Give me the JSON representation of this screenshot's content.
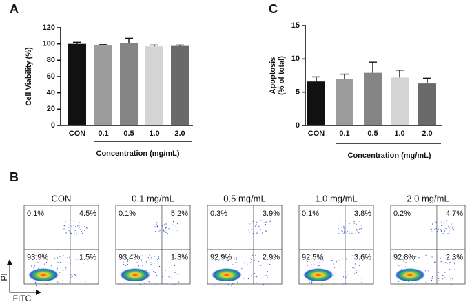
{
  "panel_labels": [
    "A",
    "B",
    "C"
  ],
  "chart_data": [
    {
      "type": "bar",
      "ylabel": "Cell Viability (%)",
      "xlabel": "Concentration (mg/mL)",
      "categories": [
        "CON",
        "0.1",
        "0.5",
        "1.0",
        "2.0"
      ],
      "values": [
        100,
        98,
        101,
        97,
        97.5
      ],
      "errors": [
        2,
        1,
        6,
        1.5,
        1
      ],
      "colors": [
        "#111111",
        "#9c9c9c",
        "#858585",
        "#d4d4d4",
        "#6a6a6a"
      ],
      "ylim": [
        0,
        120
      ],
      "yticks": [
        0,
        20,
        40,
        60,
        80,
        100,
        120
      ]
    },
    {
      "type": "bar",
      "ylabel_lines": [
        "Apoptosis",
        "(% of total)"
      ],
      "xlabel": "Concentration (mg/mL)",
      "categories": [
        "CON",
        "0.1",
        "0.5",
        "1.0",
        "2.0"
      ],
      "values": [
        6.6,
        7.0,
        7.9,
        7.2,
        6.3
      ],
      "errors": [
        0.7,
        0.7,
        1.6,
        1.1,
        0.8
      ],
      "colors": [
        "#111111",
        "#9c9c9c",
        "#858585",
        "#d4d4d4",
        "#6a6a6a"
      ],
      "ylim": [
        0,
        15
      ],
      "yticks": [
        0,
        5,
        10,
        15
      ]
    }
  ],
  "flow_cytometry": {
    "y_axis": "PI",
    "x_axis": "FITC",
    "panels": [
      {
        "title": "CON",
        "upper_left": "0.1%",
        "upper_right": "4.5%",
        "lower_left": "93.9%",
        "lower_right": "1.5%"
      },
      {
        "title": "0.1 mg/mL",
        "upper_left": "0.1%",
        "upper_right": "5.2%",
        "lower_left": "93.4%",
        "lower_right": "1.3%"
      },
      {
        "title": "0.5 mg/mL",
        "upper_left": "0.3%",
        "upper_right": "3.9%",
        "lower_left": "92.9%",
        "lower_right": "2.9%"
      },
      {
        "title": "1.0 mg/mL",
        "upper_left": "0.1%",
        "upper_right": "3.8%",
        "lower_left": "92.5%",
        "lower_right": "3.6%"
      },
      {
        "title": "2.0 mg/mL",
        "upper_left": "0.2%",
        "upper_right": "4.7%",
        "lower_left": "92.8%",
        "lower_right": "2.3%"
      }
    ]
  }
}
